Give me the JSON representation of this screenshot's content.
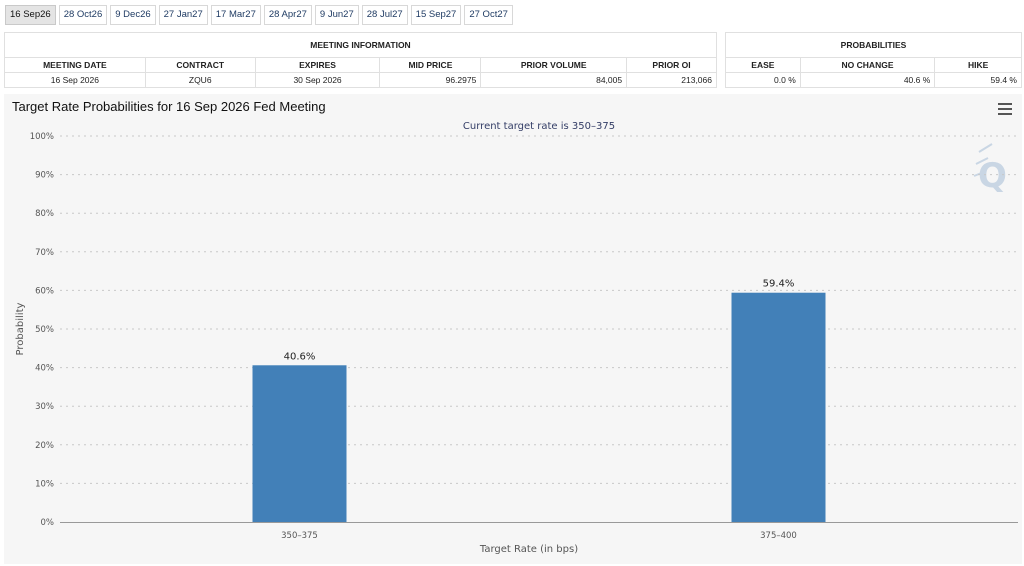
{
  "tabs": [
    "16 Sep26",
    "28 Oct26",
    "9 Dec26",
    "27 Jan27",
    "17 Mar27",
    "28 Apr27",
    "9 Jun27",
    "28 Jul27",
    "15 Sep27",
    "27 Oct27"
  ],
  "meeting_info": {
    "group_label": "MEETING INFORMATION",
    "headers": [
      "MEETING DATE",
      "CONTRACT",
      "EXPIRES",
      "MID PRICE",
      "PRIOR VOLUME",
      "PRIOR OI"
    ],
    "row": [
      "16 Sep 2026",
      "ZQU6",
      "30 Sep 2026",
      "96.2975",
      "84,005",
      "213,066"
    ]
  },
  "probabilities": {
    "group_label": "PROBABILITIES",
    "headers": [
      "EASE",
      "NO CHANGE",
      "HIKE"
    ],
    "row": [
      "0.0 %",
      "40.6 %",
      "59.4 %"
    ]
  },
  "chart": {
    "title": "Target Rate Probabilities for 16 Sep 2026 Fed Meeting",
    "menu_icon": "hamburger-menu-icon",
    "watermark_icon": "q-logo-icon"
  },
  "chart_data": {
    "type": "bar",
    "title": "Target Rate Probabilities for 16 Sep 2026 Fed Meeting",
    "subtitle": "Current target rate is 350–375",
    "categories": [
      "350–375",
      "375–400"
    ],
    "values": [
      40.6,
      59.4
    ],
    "data_labels": [
      "40.6%",
      "59.4%"
    ],
    "xlabel": "Target Rate (in bps)",
    "ylabel": "Probability",
    "ylim": [
      0,
      100
    ],
    "yticks": [
      "0%",
      "10%",
      "20%",
      "30%",
      "40%",
      "50%",
      "60%",
      "70%",
      "80%",
      "90%",
      "100%"
    ],
    "grid": true,
    "bar_color": "#4280b8"
  }
}
